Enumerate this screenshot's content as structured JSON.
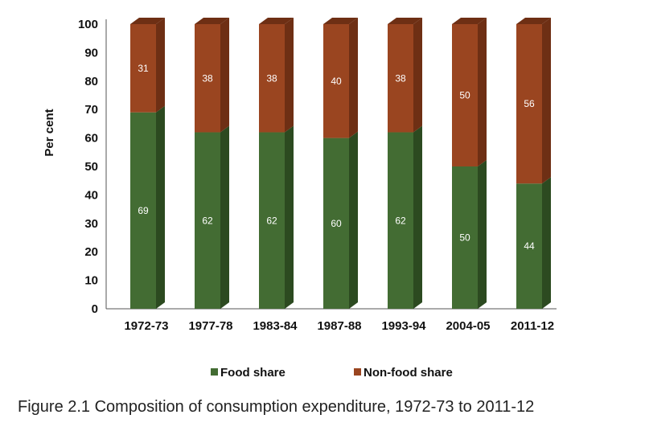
{
  "chart_data": {
    "type": "bar",
    "stacked": true,
    "ylabel": "Per cent",
    "xlabel": "",
    "ylim": [
      0,
      100
    ],
    "yticks": [
      0,
      10,
      20,
      30,
      40,
      50,
      60,
      70,
      80,
      90,
      100
    ],
    "categories": [
      "1972-73",
      "1977-78",
      "1983-84",
      "1987-88",
      "1993-94",
      "2004-05",
      "2011-12"
    ],
    "series": [
      {
        "name": "Food share",
        "color": "#436c33",
        "side_color": "#2c4a20",
        "values": [
          69,
          62,
          62,
          60,
          62,
          50,
          44
        ]
      },
      {
        "name": "Non-food share",
        "color": "#9a4520",
        "side_color": "#6e2f14",
        "values": [
          31,
          38,
          38,
          40,
          38,
          50,
          56
        ]
      }
    ],
    "legend_position": "bottom",
    "grid": false
  },
  "caption": "Figure 2.1 Composition of consumption expenditure, 1972-73 to 2011-12"
}
